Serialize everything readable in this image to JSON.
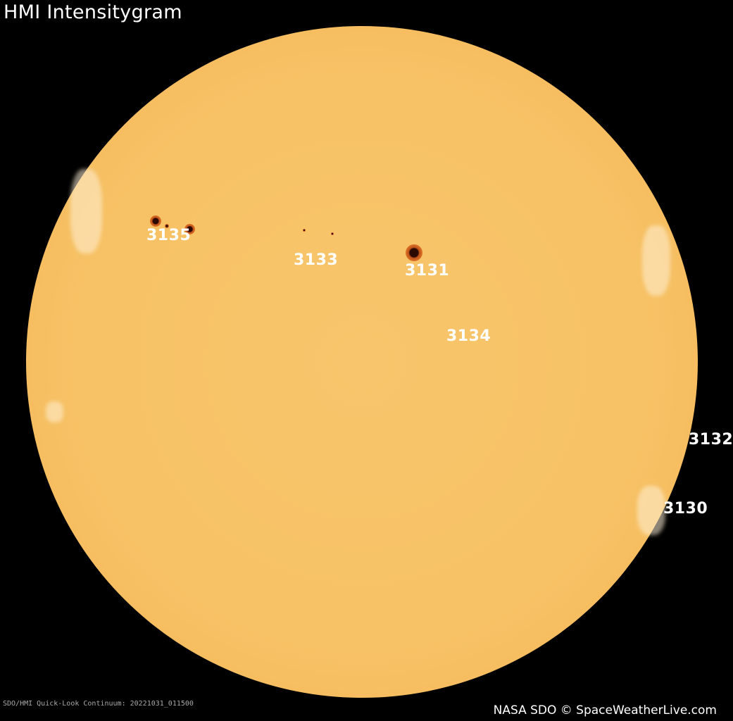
{
  "title": "HMI Intensitygram",
  "regions": [
    {
      "id": "3135"
    },
    {
      "id": "3133"
    },
    {
      "id": "3131"
    },
    {
      "id": "3134"
    },
    {
      "id": "3132"
    },
    {
      "id": "3130"
    }
  ],
  "footer": {
    "caption": "SDO/HMI  Quick-Look  Continuum:  20221031_011500",
    "credit": "NASA SDO © SpaceWeatherLive.com"
  },
  "colors": {
    "background": "#000000",
    "sun": "#f7c265",
    "sunspot": "#2a0a00",
    "label": "#ffffff"
  }
}
